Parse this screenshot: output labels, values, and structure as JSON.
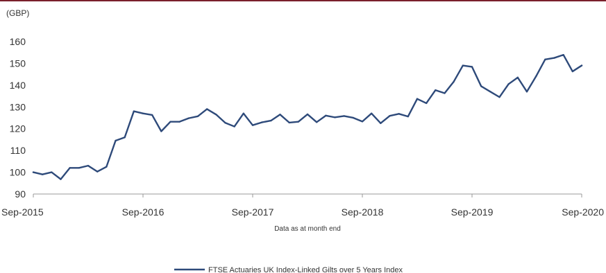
{
  "chart_data": {
    "type": "line",
    "unit_label": "(GBP)",
    "xlabel": "Data as at month end",
    "ylabel": "",
    "ylim": [
      90,
      160
    ],
    "yticks": [
      90,
      100,
      110,
      120,
      130,
      140,
      150,
      160
    ],
    "xtick_labels": [
      "Sep-2015",
      "Sep-2016",
      "Sep-2017",
      "Sep-2018",
      "Sep-2019",
      "Sep-2020"
    ],
    "grid": false,
    "legend_position": "bottom-center",
    "colors": {
      "series": "#2e4a7a",
      "axis": "#999999",
      "top_rule": "#7a1f2b"
    },
    "series": [
      {
        "name": "FTSE Actuaries UK Index-Linked Gilts over 5 Years Index",
        "x": [
          "Sep-2015",
          "Oct-2015",
          "Nov-2015",
          "Dec-2015",
          "Jan-2016",
          "Feb-2016",
          "Mar-2016",
          "Apr-2016",
          "May-2016",
          "Jun-2016",
          "Jul-2016",
          "Aug-2016",
          "Sep-2016",
          "Oct-2016",
          "Nov-2016",
          "Dec-2016",
          "Jan-2017",
          "Feb-2017",
          "Mar-2017",
          "Apr-2017",
          "May-2017",
          "Jun-2017",
          "Jul-2017",
          "Aug-2017",
          "Sep-2017",
          "Oct-2017",
          "Nov-2017",
          "Dec-2017",
          "Jan-2018",
          "Feb-2018",
          "Mar-2018",
          "Apr-2018",
          "May-2018",
          "Jun-2018",
          "Jul-2018",
          "Aug-2018",
          "Sep-2018",
          "Oct-2018",
          "Nov-2018",
          "Dec-2018",
          "Jan-2019",
          "Feb-2019",
          "Mar-2019",
          "Apr-2019",
          "May-2019",
          "Jun-2019",
          "Jul-2019",
          "Aug-2019",
          "Sep-2019",
          "Oct-2019",
          "Nov-2019",
          "Dec-2019",
          "Jan-2020",
          "Feb-2020",
          "Mar-2020",
          "Apr-2020",
          "May-2020",
          "Jun-2020",
          "Jul-2020",
          "Aug-2020",
          "Sep-2020"
        ],
        "values": [
          100,
          99,
          100,
          96.8,
          102,
          102,
          103,
          100.3,
          102.5,
          114.5,
          116,
          128,
          127,
          126.3,
          118.8,
          123.2,
          123.2,
          124.8,
          125.7,
          129,
          126.5,
          122.7,
          121,
          127,
          121.6,
          122.9,
          123.7,
          126.5,
          122.8,
          123.2,
          126.6,
          123,
          126,
          125.2,
          125.8,
          125,
          123.3,
          127,
          122.5,
          125.9,
          126.8,
          125.6,
          133.7,
          131.7,
          137.7,
          136.3,
          141.6,
          149,
          148.4,
          139.5,
          137,
          134.5,
          140.5,
          143.5,
          137,
          144,
          151.8,
          152.5,
          153.9,
          146.3,
          149
        ]
      }
    ]
  }
}
